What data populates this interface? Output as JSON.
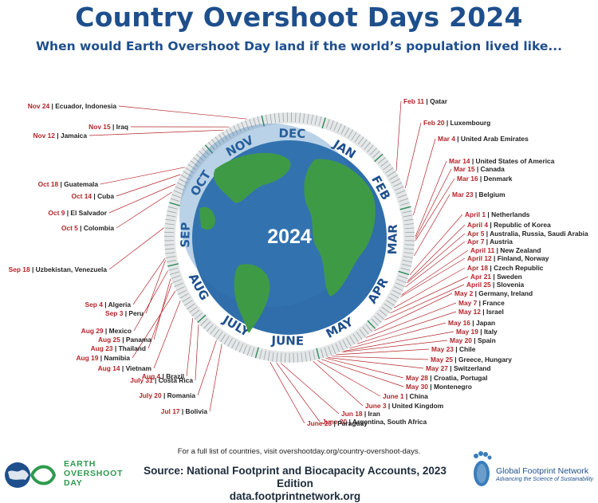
{
  "title": "Country Overshoot Days 2024",
  "subtitle": "When would Earth Overshoot Day land if the world’s population lived like...",
  "center_year": "2024",
  "colors": {
    "title": "#1e4f8c",
    "date": "#b3252a",
    "ring": "#d8dcde",
    "ocean": "#2f6eaa",
    "land": "#3f9a46",
    "eod_green": "#2e9a4e"
  },
  "months": [
    "JAN",
    "FEB",
    "MAR",
    "APR",
    "MAY",
    "JUNE",
    "JULY",
    "AUG",
    "SEP",
    "OCT",
    "NOV",
    "DEC"
  ],
  "entries": [
    {
      "date": "Feb 11",
      "countries": "Qatar",
      "day": 42
    },
    {
      "date": "Feb 20",
      "countries": "Luxembourg",
      "day": 51
    },
    {
      "date": "Mar 4",
      "countries": "United Arab Emirates",
      "day": 64
    },
    {
      "date": "Mar 14",
      "countries": "United States of America",
      "day": 74
    },
    {
      "date": "Mar 15",
      "countries": "Canada",
      "day": 75
    },
    {
      "date": "Mar 16",
      "countries": "Denmark",
      "day": 76
    },
    {
      "date": "Mar 23",
      "countries": "Belgium",
      "day": 83
    },
    {
      "date": "April 1",
      "countries": "Netherlands",
      "day": 92
    },
    {
      "date": "April 4",
      "countries": "Republic of Korea",
      "day": 95
    },
    {
      "date": "Apr 5",
      "countries": "Australia, Russia, Saudi Arabia",
      "day": 96
    },
    {
      "date": "Apr 7",
      "countries": "Austria",
      "day": 98
    },
    {
      "date": "April 11",
      "countries": "New Zealand",
      "day": 102
    },
    {
      "date": "April 12",
      "countries": "Finland, Norway",
      "day": 103
    },
    {
      "date": "Apr 18",
      "countries": "Czech Republic",
      "day": 109
    },
    {
      "date": "Apr 21",
      "countries": "Sweden",
      "day": 112
    },
    {
      "date": "April 25",
      "countries": "Slovenia",
      "day": 116
    },
    {
      "date": "May 2",
      "countries": "Germany, Ireland",
      "day": 123
    },
    {
      "date": "May 7",
      "countries": "France",
      "day": 128
    },
    {
      "date": "May 12",
      "countries": "Israel",
      "day": 133
    },
    {
      "date": "May 16",
      "countries": "Japan",
      "day": 137
    },
    {
      "date": "May 19",
      "countries": "Italy",
      "day": 140
    },
    {
      "date": "May 20",
      "countries": "Spain",
      "day": 141
    },
    {
      "date": "May 23",
      "countries": "Chile",
      "day": 144
    },
    {
      "date": "May 25",
      "countries": "Greece, Hungary",
      "day": 146
    },
    {
      "date": "May 27",
      "countries": "Switzerland",
      "day": 148
    },
    {
      "date": "May 28",
      "countries": "Croatia, Portugal",
      "day": 149
    },
    {
      "date": "May 30",
      "countries": "Montenegro",
      "day": 151
    },
    {
      "date": "June 1",
      "countries": "China",
      "day": 153
    },
    {
      "date": "June 3",
      "countries": "United Kingdom",
      "day": 155
    },
    {
      "date": "Jun 18",
      "countries": "Iran",
      "day": 170
    },
    {
      "date": "June 20",
      "countries": "Argentina, South Africa",
      "day": 172
    },
    {
      "date": "June 23",
      "countries": "Paraguay",
      "day": 175
    },
    {
      "date": "Jul 17",
      "countries": "Bolivia",
      "day": 199
    },
    {
      "date": "July 20",
      "countries": "Romania",
      "day": 202
    },
    {
      "date": "July 31",
      "countries": "Costa Rica",
      "day": 213
    },
    {
      "date": "Aug 4",
      "countries": "Brazil",
      "day": 217
    },
    {
      "date": "Aug 14",
      "countries": "Vietnam",
      "day": 227
    },
    {
      "date": "Aug 19",
      "countries": "Namibia",
      "day": 232
    },
    {
      "date": "Aug 23",
      "countries": "Thailand",
      "day": 236
    },
    {
      "date": "Aug 25",
      "countries": "Panama",
      "day": 238
    },
    {
      "date": "Aug 29",
      "countries": "Mexico",
      "day": 242
    },
    {
      "date": "Sep 3",
      "countries": "Peru",
      "day": 247
    },
    {
      "date": "Sep 4",
      "countries": "Algeria",
      "day": 248
    },
    {
      "date": "Sep 18",
      "countries": "Uzbekistan, Venezuela",
      "day": 262
    },
    {
      "date": "Oct 5",
      "countries": "Colombia",
      "day": 279
    },
    {
      "date": "Oct 9",
      "countries": "El Salvador",
      "day": 283
    },
    {
      "date": "Oct 14",
      "countries": "Cuba",
      "day": 288
    },
    {
      "date": "Oct 18",
      "countries": "Guatemala",
      "day": 292
    },
    {
      "date": "Nov 12",
      "countries": "Jamaica",
      "day": 317
    },
    {
      "date": "Nov 15",
      "countries": "Iraq",
      "day": 320
    },
    {
      "date": "Nov 24",
      "countries": "Ecuador, Indonesia",
      "day": 329
    }
  ],
  "footer": {
    "note": "For a full list of countries, visit overshootday.org/country-overshoot-days.",
    "source_line1": "Source: National Footprint and Biocapacity Accounts, 2023 Edition",
    "source_line2": "data.footprintnetwork.org",
    "eod_logo": {
      "line1": "EARTH",
      "line2": "OVERSHOOT",
      "line3": "DAY",
      "icon": "earth-overshoot-day-logo-icon"
    },
    "gfn_logo": {
      "name": "Global Footprint Network",
      "tagline": "Advancing the Science of Sustainability",
      "icon": "footprint-icon"
    }
  }
}
